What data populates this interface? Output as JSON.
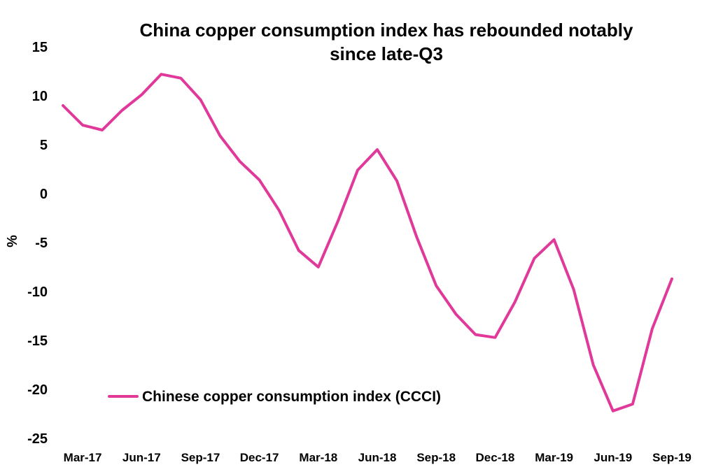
{
  "chart_data": {
    "type": "line",
    "title_lines": [
      "China copper consumption index has rebounded notably",
      "since late-Q3"
    ],
    "xlabel": "",
    "ylabel": "%",
    "ylim": [
      -25,
      15
    ],
    "yticks": [
      15,
      10,
      5,
      0,
      -5,
      -10,
      -15,
      -20,
      -25
    ],
    "grid": false,
    "legend_position": "bottom-left",
    "x_tick_labels": [
      "Mar-17",
      "Jun-17",
      "Sep-17",
      "Dec-17",
      "Mar-18",
      "Jun-18",
      "Sep-18",
      "Dec-18",
      "Mar-19",
      "Jun-19",
      "Sep-19"
    ],
    "x": [
      "Feb-17",
      "Mar-17",
      "Apr-17",
      "May-17",
      "Jun-17",
      "Jul-17",
      "Aug-17",
      "Sep-17",
      "Oct-17",
      "Nov-17",
      "Dec-17",
      "Jan-18",
      "Feb-18",
      "Mar-18",
      "Apr-18",
      "May-18",
      "Jun-18",
      "Jul-18",
      "Aug-18",
      "Sep-18",
      "Oct-18",
      "Nov-18",
      "Dec-18",
      "Jan-19",
      "Feb-19",
      "Mar-19",
      "Apr-19",
      "May-19",
      "Jun-19",
      "Jul-19",
      "Aug-19",
      "Sep-19"
    ],
    "series": [
      {
        "name": "Chinese copper consumption index (CCCI)",
        "color": "#e0399a",
        "values": [
          9.0,
          7.0,
          6.5,
          8.5,
          10.1,
          12.2,
          11.8,
          9.6,
          5.9,
          3.3,
          1.4,
          -1.7,
          -5.8,
          -7.5,
          -2.8,
          2.4,
          4.5,
          1.3,
          -4.4,
          -9.4,
          -12.3,
          -14.4,
          -14.7,
          -11.1,
          -6.6,
          -4.7,
          -9.8,
          -17.5,
          -22.2,
          -21.5,
          -13.8,
          -8.7
        ]
      }
    ]
  }
}
